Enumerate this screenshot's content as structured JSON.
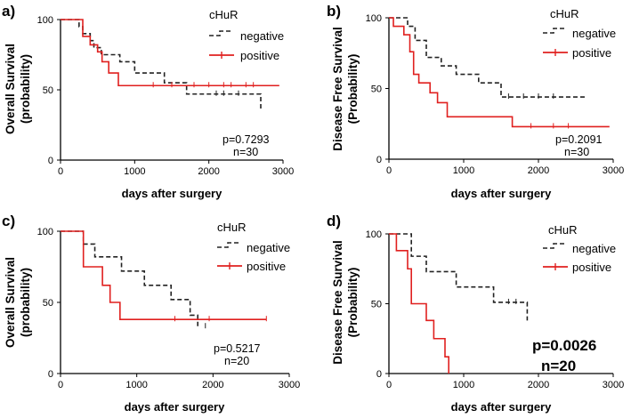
{
  "colors": {
    "negative": "#222222",
    "positive": "#e0201f",
    "axis": "#000000"
  },
  "chart_data": [
    {
      "type": "line",
      "panel_label": "a)",
      "ylabel_line1": "Overall Survival",
      "ylabel_line2": "(probability)",
      "xlabel": "days after surgery",
      "xlim": [
        0,
        3000
      ],
      "ylim": [
        0,
        100
      ],
      "x_ticks": [
        "0",
        "1000",
        "2000",
        "3000"
      ],
      "x_tick_values": [
        0,
        1000,
        2000,
        3000
      ],
      "y_ticks": [
        "0",
        "50",
        "100"
      ],
      "y_tick_values": [
        0,
        50,
        100
      ],
      "legend_title": "cHuR",
      "series": [
        {
          "name": "negative",
          "style": "dashed",
          "x": [
            0,
            200,
            250,
            300,
            400,
            450,
            550,
            800,
            1000,
            1400,
            1700,
            2700
          ],
          "y": [
            100,
            100,
            95,
            90,
            85,
            80,
            75,
            70,
            62,
            55,
            47,
            35
          ],
          "censor_x": [
            2100,
            2200,
            2400
          ]
        },
        {
          "name": "positive",
          "style": "solid",
          "x": [
            0,
            220,
            300,
            400,
            500,
            560,
            650,
            780,
            2950
          ],
          "y": [
            100,
            100,
            88,
            82,
            77,
            70,
            62,
            53,
            53
          ],
          "censor_x": [
            1250,
            1500,
            1800,
            2000,
            2200,
            2300,
            2500,
            2600
          ]
        }
      ],
      "annotation_line1": "p=0.7293",
      "annotation_line2": "n=30",
      "annotation_bold": false
    },
    {
      "type": "line",
      "panel_label": "b)",
      "ylabel_line1": "Disease  Free Survival",
      "ylabel_line2": "(Probability)",
      "xlabel": "days after surgery",
      "xlim": [
        0,
        3000
      ],
      "ylim": [
        0,
        100
      ],
      "x_ticks": [
        "0",
        "1000",
        "2000",
        "3000"
      ],
      "x_tick_values": [
        0,
        1000,
        2000,
        3000
      ],
      "y_ticks": [
        "0",
        "50",
        "100"
      ],
      "y_tick_values": [
        0,
        50,
        100
      ],
      "legend_title": "cHuR",
      "series": [
        {
          "name": "negative",
          "style": "dashed",
          "x": [
            0,
            150,
            250,
            350,
            500,
            700,
            900,
            1200,
            1500,
            2650
          ],
          "y": [
            100,
            100,
            94,
            84,
            72,
            66,
            60,
            54,
            44,
            44
          ],
          "censor_x": [
            1600,
            1800,
            2000,
            2200
          ]
        },
        {
          "name": "positive",
          "style": "solid",
          "x": [
            0,
            60,
            200,
            280,
            330,
            400,
            550,
            650,
            780,
            1650,
            2950
          ],
          "y": [
            100,
            94,
            88,
            76,
            60,
            54,
            47,
            40,
            30,
            23,
            23
          ],
          "censor_x": [
            1900,
            2200,
            2400
          ]
        }
      ],
      "annotation_line1": "p=0.2091",
      "annotation_line2": "n=30",
      "annotation_bold": false
    },
    {
      "type": "line",
      "panel_label": "c)",
      "ylabel_line1": "Overall Survival",
      "ylabel_line2": "(probability)",
      "xlabel": "days after surgery",
      "xlim": [
        0,
        3000
      ],
      "ylim": [
        0,
        100
      ],
      "x_ticks": [
        "0",
        "1000",
        "2000",
        "3000"
      ],
      "x_tick_values": [
        0,
        1000,
        2000,
        3000
      ],
      "y_ticks": [
        "0",
        "50",
        "100"
      ],
      "y_tick_values": [
        0,
        50,
        100
      ],
      "legend_title": "cHuR",
      "series": [
        {
          "name": "negative",
          "style": "dashed",
          "x": [
            0,
            250,
            300,
            450,
            800,
            1100,
            1450,
            1700,
            1800
          ],
          "y": [
            100,
            100,
            91,
            82,
            72,
            62,
            52,
            41,
            33
          ],
          "censor_x": [
            1900
          ]
        },
        {
          "name": "positive",
          "style": "solid",
          "x": [
            0,
            200,
            300,
            550,
            650,
            780,
            2700
          ],
          "y": [
            100,
            100,
            75,
            62,
            50,
            38,
            38
          ],
          "censor_x": [
            1500,
            1950,
            2700
          ]
        }
      ],
      "annotation_line1": "p=0.5217",
      "annotation_line2": "n=20",
      "annotation_bold": false
    },
    {
      "type": "line",
      "panel_label": "d)",
      "ylabel_line1": "Disease  Free Survival",
      "ylabel_line2": "(Probability)",
      "xlabel": "days after surgery",
      "xlim": [
        0,
        3000
      ],
      "ylim": [
        0,
        100
      ],
      "x_ticks": [
        "0",
        "1000",
        "2000",
        "3000"
      ],
      "x_tick_values": [
        0,
        1000,
        2000,
        3000
      ],
      "y_ticks": [
        "0",
        "50",
        "100"
      ],
      "y_tick_values": [
        0,
        50,
        100
      ],
      "legend_title": "cHuR",
      "series": [
        {
          "name": "negative",
          "style": "dashed",
          "x": [
            0,
            200,
            300,
            500,
            900,
            1400,
            1850
          ],
          "y": [
            100,
            100,
            84,
            73,
            62,
            51,
            38
          ],
          "censor_x": [
            1600,
            1700
          ]
        },
        {
          "name": "positive",
          "style": "solid",
          "x": [
            0,
            100,
            250,
            300,
            500,
            600,
            750,
            800
          ],
          "y": [
            100,
            88,
            75,
            50,
            38,
            25,
            12,
            0
          ],
          "censor_x": []
        }
      ],
      "annotation_line1": "p=0.0026",
      "annotation_line2": "n=20",
      "annotation_bold": true
    }
  ]
}
